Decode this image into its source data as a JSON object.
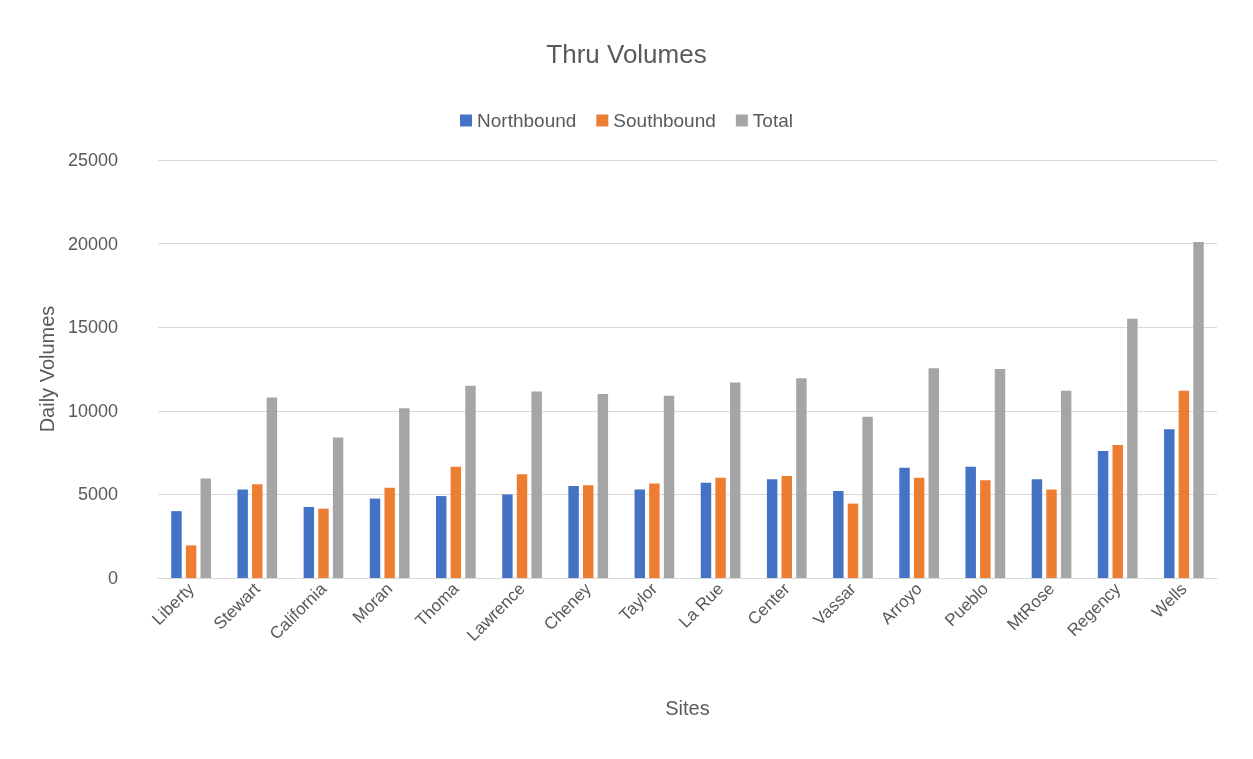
{
  "chart_data": {
    "type": "bar",
    "title": "Thru Volumes",
    "xlabel": "Sites",
    "ylabel": "Daily Volumes",
    "categories": [
      "Liberty",
      "Stewart",
      "California",
      "Moran",
      "Thoma",
      "Lawrence",
      "Cheney",
      "Taylor",
      "La Rue",
      "Center",
      "Vassar",
      "Arroyo",
      "Pueblo",
      "MtRose",
      "Regency",
      "Wells"
    ],
    "series": [
      {
        "name": "Northbound",
        "color": "#4472c4",
        "values": [
          4000,
          5300,
          4250,
          4750,
          4900,
          5000,
          5500,
          5300,
          5700,
          5900,
          5200,
          6600,
          6650,
          5900,
          7600,
          8900
        ]
      },
      {
        "name": "Southbound",
        "color": "#ed7d31",
        "values": [
          1950,
          5600,
          4150,
          5400,
          6650,
          6200,
          5550,
          5650,
          6000,
          6100,
          4450,
          6000,
          5850,
          5300,
          7950,
          11200
        ]
      },
      {
        "name": "Total",
        "color": "#a5a5a5",
        "values": [
          5950,
          10800,
          8400,
          10150,
          11500,
          11150,
          11000,
          10900,
          11700,
          11950,
          9650,
          12550,
          12500,
          11200,
          15500,
          20100
        ]
      }
    ],
    "ylim": [
      0,
      25000
    ],
    "yticks": [
      0,
      5000,
      10000,
      15000,
      20000,
      25000
    ],
    "grid": "y",
    "legend": "top"
  }
}
